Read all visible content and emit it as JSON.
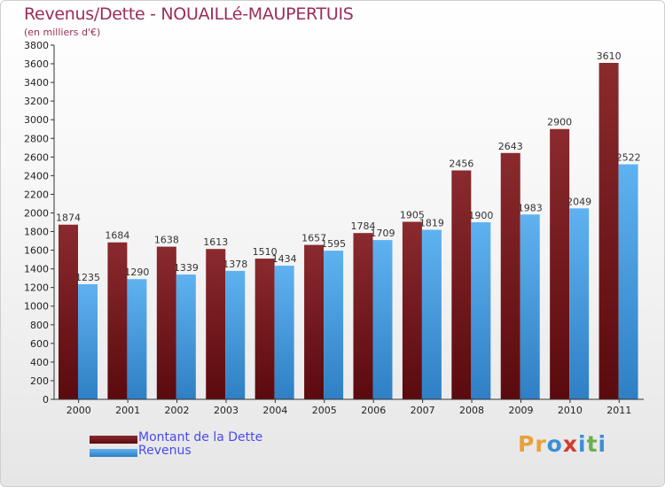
{
  "title": "Revenus/Dette - NOUAILLé-MAUPERTUIS",
  "subtitle": "(en milliers d'€)",
  "logo": {
    "text": "Proxiti",
    "letters": [
      {
        "ch": "P",
        "color": "#e8a13a"
      },
      {
        "ch": "r",
        "color": "#e8a13a"
      },
      {
        "ch": "o",
        "color": "#3a8fd6"
      },
      {
        "ch": "x",
        "color": "#d33b2a"
      },
      {
        "ch": "i",
        "color": "#3a8fd6"
      },
      {
        "ch": "t",
        "color": "#6ab04c"
      },
      {
        "ch": "i",
        "color": "#3a8fd6"
      }
    ]
  },
  "colors": {
    "dette": "#7a1e22",
    "revenus": "#4aa3e8",
    "axis": "#333333",
    "grid": "#dddddd"
  },
  "chart_data": {
    "type": "bar",
    "title": "Revenus/Dette - NOUAILLé-MAUPERTUIS",
    "subtitle": "(en milliers d'€)",
    "xlabel": "",
    "ylabel": "",
    "ylim": [
      0,
      3800
    ],
    "ytick_step": 200,
    "grid": false,
    "legend": "bottom-left",
    "categories": [
      "2000",
      "2001",
      "2002",
      "2003",
      "2004",
      "2005",
      "2006",
      "2007",
      "2008",
      "2009",
      "2010",
      "2011"
    ],
    "series": [
      {
        "name": "Montant de la Dette",
        "color": "#7a1e22",
        "values": [
          1874,
          1684,
          1638,
          1613,
          1510,
          1657,
          1784,
          1905,
          2456,
          2643,
          2900,
          3610
        ]
      },
      {
        "name": "Revenus",
        "color": "#4aa3e8",
        "values": [
          1235,
          1290,
          1339,
          1378,
          1434,
          1595,
          1709,
          1819,
          1900,
          1983,
          2049,
          2522
        ]
      }
    ]
  }
}
